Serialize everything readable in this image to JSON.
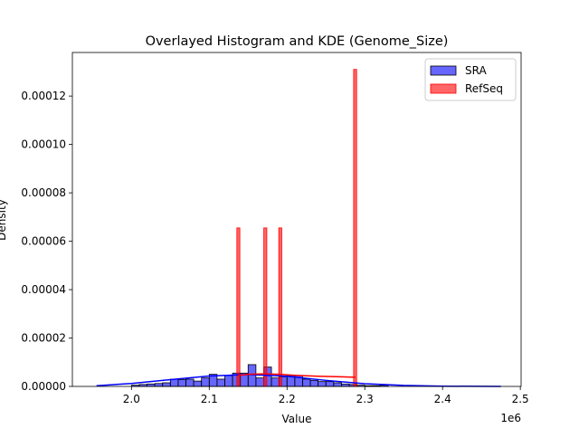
{
  "chart_data": {
    "type": "histogram",
    "title": "Overlayed Histogram and KDE (Genome_Size)",
    "x_label": "Value",
    "y_label": "Density",
    "x_offset_label": "1e6",
    "xlim": [
      1924000,
      2501000
    ],
    "ylim": [
      0,
      0.000138
    ],
    "xticks": [
      {
        "value": 2000000,
        "label": "2.0"
      },
      {
        "value": 2100000,
        "label": "2.1"
      },
      {
        "value": 2200000,
        "label": "2.2"
      },
      {
        "value": 2300000,
        "label": "2.3"
      },
      {
        "value": 2400000,
        "label": "2.4"
      },
      {
        "value": 2500000,
        "label": "2.5"
      }
    ],
    "yticks": [
      {
        "value": 0,
        "label": "0.00000"
      },
      {
        "value": 2e-05,
        "label": "0.00002"
      },
      {
        "value": 4e-05,
        "label": "0.00004"
      },
      {
        "value": 6e-05,
        "label": "0.00006"
      },
      {
        "value": 8e-05,
        "label": "0.00008"
      },
      {
        "value": 0.0001,
        "label": "0.00010"
      },
      {
        "value": 0.00012,
        "label": "0.00012"
      }
    ],
    "legend": "upper right",
    "series": [
      {
        "name": "SRA",
        "color": "#0000ff",
        "edge_color": "#000000",
        "bins": [
          2000000,
          2010000,
          2020000,
          2030000,
          2040000,
          2050000,
          2060000,
          2070000,
          2080000,
          2090000,
          2100000,
          2110000,
          2120000,
          2130000,
          2140000,
          2150000,
          2160000,
          2170000,
          2180000,
          2190000,
          2200000,
          2210000,
          2220000,
          2230000,
          2240000,
          2250000,
          2260000,
          2270000,
          2280000,
          2290000,
          2300000,
          2310000,
          2320000,
          2330000
        ],
        "values": [
          5e-07,
          8e-07,
          1e-06,
          1.2e-06,
          1.5e-06,
          3e-06,
          2.8e-06,
          3e-06,
          2.2e-06,
          3.5e-06,
          5e-06,
          3e-06,
          4.5e-06,
          5.5e-06,
          5.5e-06,
          9e-06,
          3.5e-06,
          8e-06,
          3.5e-06,
          4e-06,
          4.5e-06,
          4.5e-06,
          3e-06,
          2.5e-06,
          2e-06,
          2e-06,
          1.5e-06,
          1e-06,
          8e-07,
          5e-07,
          3e-07,
          3e-07,
          5e-07
        ],
        "kde": {
          "x": [
            1955000,
            2000000,
            2050000,
            2100000,
            2150000,
            2200000,
            2250000,
            2300000,
            2350000,
            2400000,
            2475000
          ],
          "y": [
            3e-07,
            1.2e-06,
            2.8e-06,
            4.3e-06,
            4.9e-06,
            4.2e-06,
            2.5e-06,
            1.1e-06,
            4e-07,
            1e-07,
            0
          ]
        }
      },
      {
        "name": "RefSeq",
        "color": "#ff0000",
        "edge_color": "#ff0000",
        "bins": [
          2135500,
          2139350,
          2143200,
          2147050,
          2150900,
          2154750,
          2158600,
          2162450,
          2166300,
          2170150,
          2174000,
          2177850,
          2181700,
          2185550,
          2189400,
          2193250,
          2197100,
          2200950,
          2204800,
          2208650,
          2212500,
          2216350,
          2220200,
          2224050,
          2227900,
          2231750,
          2235600,
          2239450,
          2243300,
          2247150,
          2251000,
          2254850,
          2258700,
          2262550,
          2266400,
          2270250,
          2274100,
          2277950,
          2281800,
          2285650,
          2289500
        ],
        "values": [
          6.55e-05,
          0,
          0,
          0,
          0,
          0,
          0,
          0,
          0,
          6.55e-05,
          0,
          0,
          0,
          0,
          6.55e-05,
          0,
          0,
          0,
          0,
          0,
          0,
          0,
          0,
          0,
          0,
          0,
          0,
          0,
          0,
          0,
          0,
          0,
          0,
          0,
          0,
          0,
          0,
          0,
          0,
          0.000131
        ],
        "kde": {
          "x": [
            2137000,
            2150000,
            2170000,
            2190000,
            2210000,
            2240000,
            2288000
          ],
          "y": [
            4.5e-06,
            5e-06,
            5.2e-06,
            5e-06,
            4.6e-06,
            4.2e-06,
            3.8e-06
          ]
        }
      }
    ]
  }
}
